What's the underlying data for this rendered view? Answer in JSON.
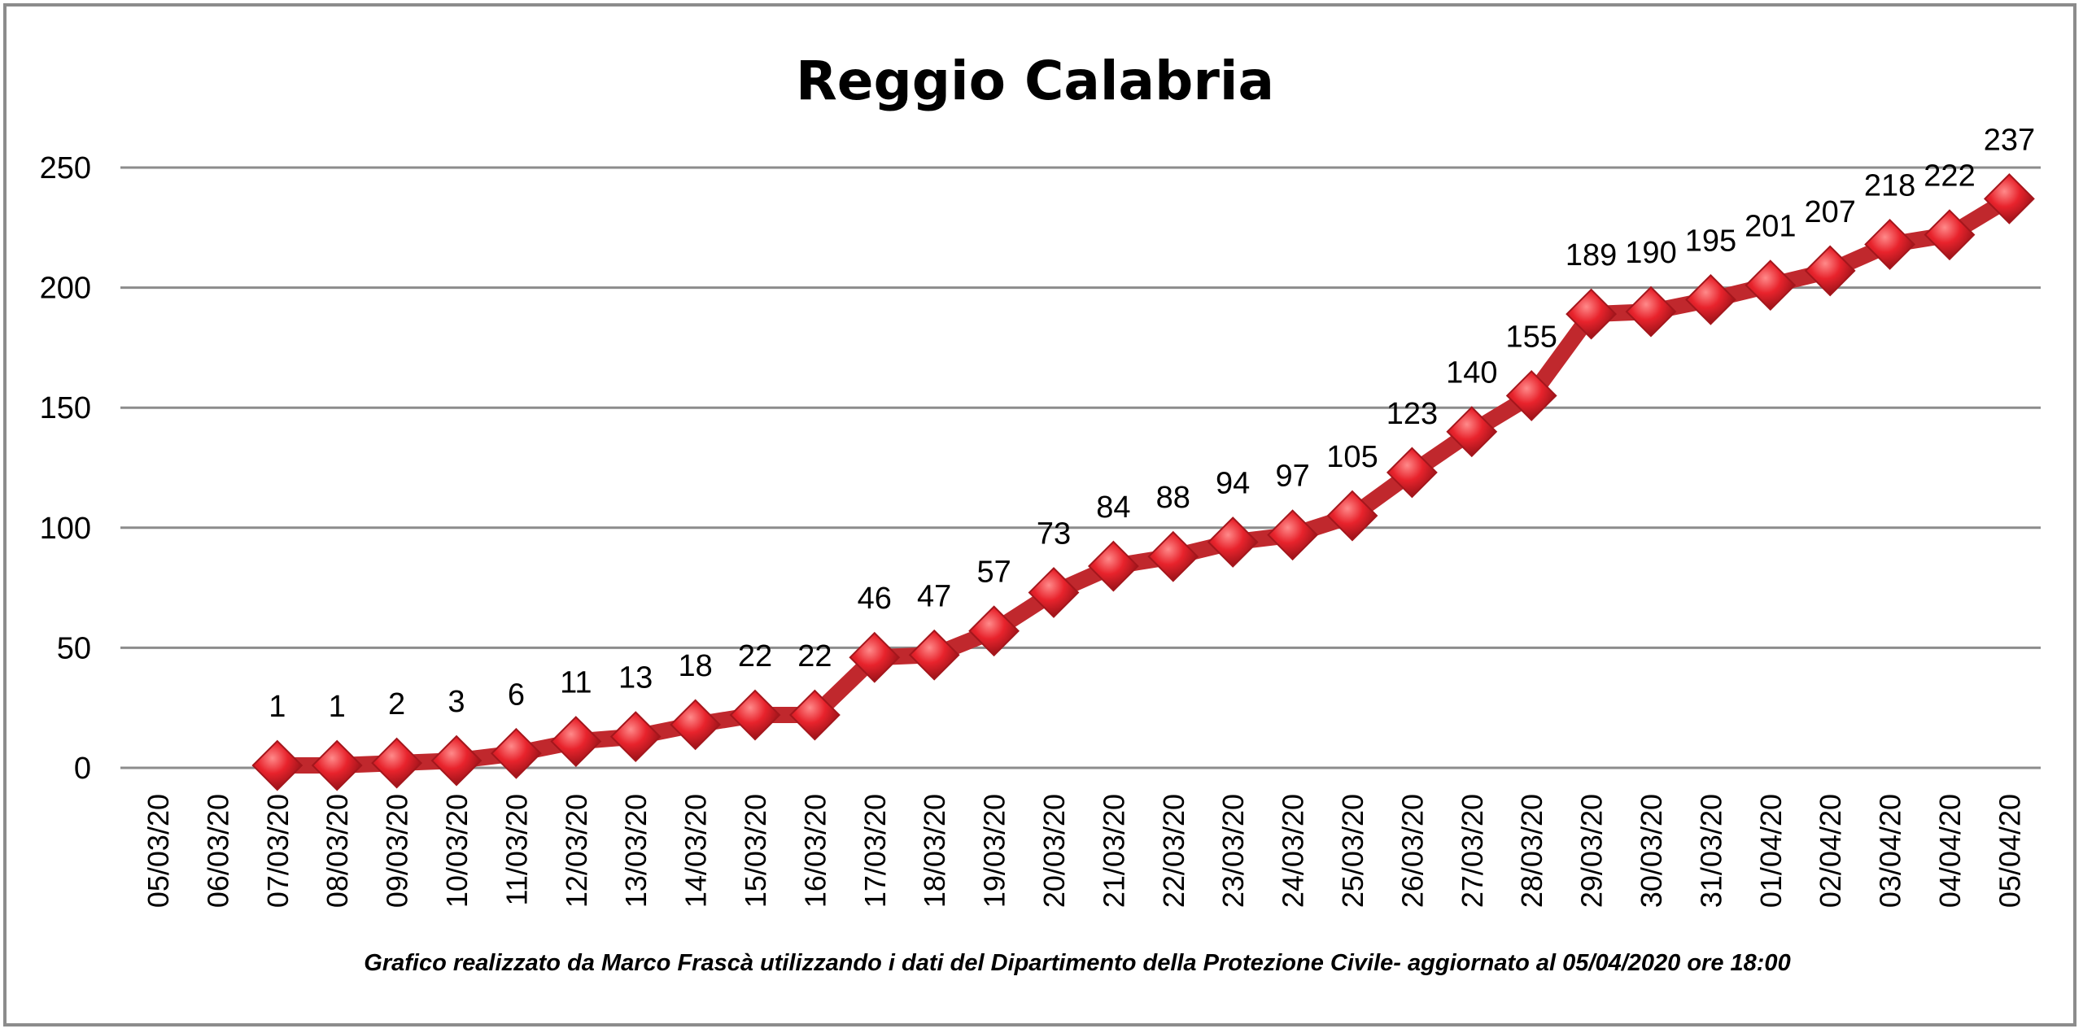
{
  "chart_data": {
    "type": "line",
    "title": "Reggio Calabria",
    "footnote": "Grafico  realizzato da Marco Frascà  utilizzando i dati del Dipartimento  della Protezione Civile- aggiornato al 05/04/2020 ore 18:00",
    "categories": [
      "05/03/20",
      "06/03/20",
      "07/03/20",
      "08/03/20",
      "09/03/20",
      "10/03/20",
      "11/03/20",
      "12/03/20",
      "13/03/20",
      "14/03/20",
      "15/03/20",
      "16/03/20",
      "17/03/20",
      "18/03/20",
      "19/03/20",
      "20/03/20",
      "21/03/20",
      "22/03/20",
      "23/03/20",
      "24/03/20",
      "25/03/20",
      "26/03/20",
      "27/03/20",
      "28/03/20",
      "29/03/20",
      "30/03/20",
      "31/03/20",
      "01/04/20",
      "02/04/20",
      "03/04/20",
      "04/04/20",
      "05/04/20"
    ],
    "values": [
      null,
      null,
      1,
      1,
      2,
      3,
      6,
      11,
      13,
      18,
      22,
      22,
      46,
      47,
      57,
      73,
      84,
      88,
      94,
      97,
      105,
      123,
      140,
      155,
      189,
      190,
      195,
      201,
      207,
      218,
      222,
      237
    ],
    "ylim": [
      0,
      250
    ],
    "yticks": [
      0,
      50,
      100,
      150,
      200,
      250
    ],
    "grid": true,
    "legend": "none",
    "colors": {
      "line": "#c0282d",
      "marker": "#e8232c",
      "grid": "#8c8c8c"
    }
  }
}
